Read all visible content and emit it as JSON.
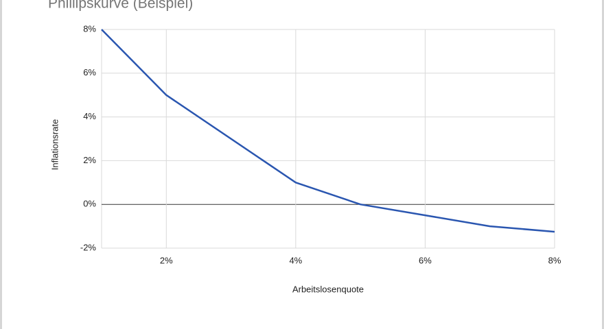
{
  "chart_data": {
    "type": "line",
    "title": "Phillipskurve (Beispiel)",
    "x_label": "Arbeitslosenquote",
    "y_label": "Inflationsrate",
    "x": [
      1,
      2,
      4,
      5,
      6,
      7,
      8
    ],
    "series": [
      {
        "name": "Inflationsrate",
        "color": "#2a56b0",
        "values": [
          8,
          5,
          1,
          0,
          -0.5,
          -1,
          -1.25
        ]
      }
    ],
    "xlim": [
      1,
      8
    ],
    "ylim": [
      -2,
      8
    ],
    "xticks": [
      {
        "value": 2,
        "label": "2%"
      },
      {
        "value": 4,
        "label": "4%"
      },
      {
        "value": 6,
        "label": "6%"
      },
      {
        "value": 8,
        "label": "8%"
      }
    ],
    "yticks": [
      {
        "value": -2,
        "label": "-2%"
      },
      {
        "value": 0,
        "label": "0%"
      },
      {
        "value": 2,
        "label": "2%"
      },
      {
        "value": 4,
        "label": "4%"
      },
      {
        "value": 6,
        "label": "6%"
      },
      {
        "value": 8,
        "label": "8%"
      }
    ],
    "grid": true
  }
}
